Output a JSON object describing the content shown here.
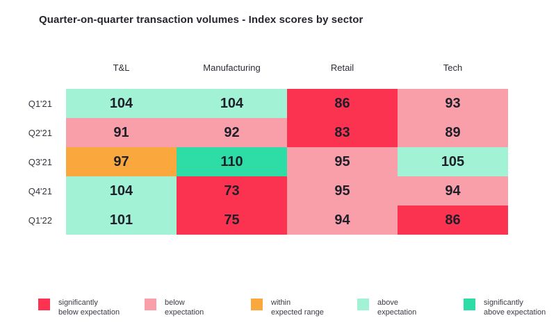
{
  "title": "Quarter-on-quarter transaction volumes - Index scores by sector",
  "colors": {
    "sig_below": "#fb3351",
    "below": "#f99fa9",
    "within": "#faa83d",
    "above": "#a2f3d6",
    "sig_above": "#2edca6"
  },
  "chart_data": {
    "type": "heatmap",
    "title": "Quarter-on-quarter transaction volumes - Index scores by sector",
    "columns": [
      "T&L",
      "Manufacturing",
      "Retail",
      "Tech"
    ],
    "rows": [
      "Q1'21",
      "Q2'21",
      "Q3'21",
      "Q4'21",
      "Q1'22"
    ],
    "values": [
      [
        104,
        104,
        86,
        93
      ],
      [
        91,
        92,
        83,
        89
      ],
      [
        97,
        110,
        95,
        105
      ],
      [
        104,
        73,
        95,
        94
      ],
      [
        101,
        75,
        94,
        86
      ]
    ],
    "cell_categories": [
      [
        "above",
        "above",
        "sig_below",
        "below"
      ],
      [
        "below",
        "below",
        "sig_below",
        "below"
      ],
      [
        "within",
        "sig_above",
        "below",
        "above"
      ],
      [
        "above",
        "sig_below",
        "below",
        "below"
      ],
      [
        "above",
        "sig_below",
        "below",
        "sig_below"
      ]
    ],
    "legend_position": "bottom",
    "legend": [
      {
        "category": "sig_below",
        "label_line1": "significantly",
        "label_line2": "below expectation"
      },
      {
        "category": "below",
        "label_line1": "below",
        "label_line2": "expectation"
      },
      {
        "category": "within",
        "label_line1": "within",
        "label_line2": "expected range"
      },
      {
        "category": "above",
        "label_line1": "above",
        "label_line2": "expectation"
      },
      {
        "category": "sig_above",
        "label_line1": "significantly",
        "label_line2": "above expectation"
      }
    ]
  }
}
